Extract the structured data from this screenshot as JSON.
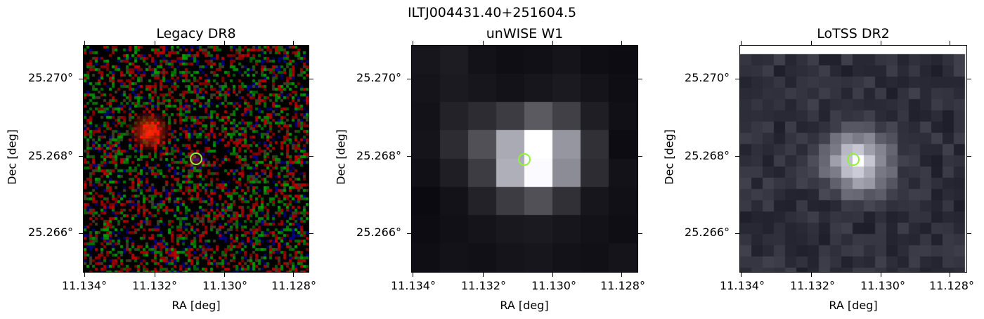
{
  "figure": {
    "title": "ILTJ004431.40+251604.5"
  },
  "panels": [
    {
      "title": "Legacy DR8",
      "xlabel": "RA [deg]",
      "ylabel": "Dec [deg]",
      "xticks": [
        "11.134°",
        "11.132°",
        "11.130°",
        "11.128°"
      ],
      "yticks": [
        "25.270°",
        "25.268°",
        "25.266°"
      ],
      "image_type": "optical-color-noise",
      "marker_color": "#8ff23a"
    },
    {
      "title": "unWISE W1",
      "xlabel": "RA [deg]",
      "ylabel": "Dec [deg]",
      "xticks": [
        "11.134°",
        "11.132°",
        "11.130°",
        "11.128°"
      ],
      "yticks": [
        "25.270°",
        "25.268°",
        "25.266°"
      ],
      "image_type": "infrared-grayscale-coarse",
      "marker_color": "#8ff23a"
    },
    {
      "title": "LoTSS DR2",
      "xlabel": "RA [deg]",
      "ylabel": "Dec [deg]",
      "xticks": [
        "11.134°",
        "11.132°",
        "11.130°",
        "11.128°"
      ],
      "yticks": [
        "25.270°",
        "25.268°",
        "25.266°"
      ],
      "image_type": "radio-grayscale",
      "marker_color": "#8ff23a"
    }
  ]
}
